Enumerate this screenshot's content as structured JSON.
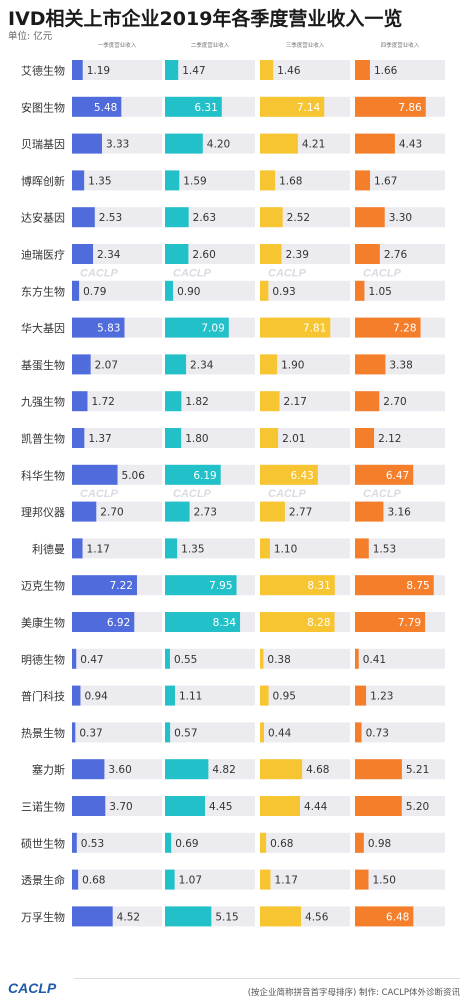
{
  "title": "IVD相关上市企业2019年各季度营业收入一览",
  "unit_label": "单位: 亿元",
  "watermark": "CACLP",
  "footer": {
    "logo": "CACLP",
    "note": "(按企业简称拼音首字母排序) 制作: CACLP体外诊断资讯"
  },
  "colors": {
    "q1": "#4f6bdc",
    "q2": "#22c1c9",
    "q3": "#f7c531",
    "q4": "#f57e2b",
    "track": "#ececf0"
  },
  "chart_data": {
    "type": "bar",
    "orientation": "horizontal",
    "title": "IVD相关上市企业2019年各季度营业收入一览",
    "unit": "亿元",
    "xlim": [
      0,
      10
    ],
    "series_headers": [
      "一季度营业收入",
      "二季度营业收入",
      "三季度营业收入",
      "四季度营业收入"
    ],
    "categories": [
      "艾德生物",
      "安图生物",
      "贝瑞基因",
      "博晖创新",
      "达安基因",
      "迪瑞医疗",
      "东方生物",
      "华大基因",
      "基蛋生物",
      "九强生物",
      "凯普生物",
      "科华生物",
      "理邦仪器",
      "利德曼",
      "迈克生物",
      "美康生物",
      "明德生物",
      "普门科技",
      "热景生物",
      "塞力斯",
      "三诺生物",
      "硕世生物",
      "透景生命",
      "万孚生物"
    ],
    "series": [
      {
        "name": "一季度营业收入",
        "values": [
          1.19,
          5.48,
          3.33,
          1.35,
          2.53,
          2.34,
          0.79,
          5.83,
          2.07,
          1.72,
          1.37,
          5.06,
          2.7,
          1.17,
          7.22,
          6.92,
          0.47,
          0.94,
          0.37,
          3.6,
          3.7,
          0.53,
          0.68,
          4.52
        ]
      },
      {
        "name": "二季度营业收入",
        "values": [
          1.47,
          6.31,
          4.2,
          1.59,
          2.63,
          2.6,
          0.9,
          7.09,
          2.34,
          1.82,
          1.8,
          6.19,
          2.73,
          1.35,
          7.95,
          8.34,
          0.55,
          1.11,
          0.57,
          4.82,
          4.45,
          0.69,
          1.07,
          5.15
        ]
      },
      {
        "name": "三季度营业收入",
        "values": [
          1.46,
          7.14,
          4.21,
          1.68,
          2.52,
          2.39,
          0.93,
          7.81,
          1.9,
          2.17,
          2.01,
          6.43,
          2.77,
          1.1,
          8.31,
          8.28,
          0.38,
          0.95,
          0.44,
          4.68,
          4.44,
          0.68,
          1.17,
          4.56
        ]
      },
      {
        "name": "四季度营业收入",
        "values": [
          1.66,
          7.86,
          4.43,
          1.67,
          3.3,
          2.76,
          1.05,
          7.28,
          3.38,
          2.7,
          2.12,
          6.47,
          3.16,
          1.53,
          8.75,
          7.79,
          0.41,
          1.23,
          0.73,
          5.21,
          5.2,
          0.98,
          1.5,
          6.48
        ]
      }
    ]
  }
}
